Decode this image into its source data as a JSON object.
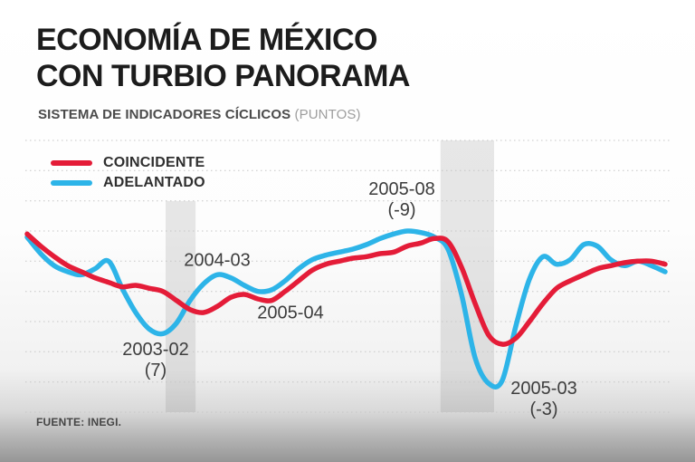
{
  "header": {
    "title_line1": "ECONOMÍA DE MÉXICO",
    "title_line2": "CON TURBIO PANORAMA",
    "subtitle_bold": "SISTEMA DE INDICADORES CÍCLICOS",
    "subtitle_light": "(PUNTOS)"
  },
  "footer": {
    "source": "FUENTE: INEGI."
  },
  "chart_data": {
    "type": "line",
    "title": "ECONOMÍA DE MÉXICO CON TURBIO PANORAMA",
    "subtitle": "SISTEMA DE INDICADORES CÍCLICOS (PUNTOS)",
    "ylabel": "puntos",
    "ylim": [
      -12,
      6
    ],
    "grid": true,
    "gridline_count": 10,
    "legend_position": "top-left",
    "x_unit": "time (monthly samples, ~2002 to 2006)",
    "x": [
      0,
      1,
      2,
      3,
      4,
      5,
      6,
      7,
      8,
      9,
      10,
      11,
      12,
      13,
      14,
      15,
      16,
      17,
      18,
      19,
      20,
      21,
      22,
      23,
      24,
      25,
      26,
      27,
      28,
      29,
      30,
      31,
      32,
      33,
      34,
      35,
      36,
      37,
      38,
      39,
      40,
      41,
      42,
      43,
      44,
      45,
      46,
      47
    ],
    "series": [
      {
        "name": "COINCIDENTE",
        "color": "#e41c38",
        "values": [
          -0.2,
          -1.0,
          -1.7,
          -2.3,
          -2.7,
          -3.1,
          -3.4,
          -3.7,
          -3.6,
          -3.8,
          -4.0,
          -4.6,
          -5.2,
          -5.4,
          -5.0,
          -4.4,
          -4.2,
          -4.5,
          -4.6,
          -4.0,
          -3.3,
          -2.6,
          -2.2,
          -2.0,
          -1.8,
          -1.7,
          -1.5,
          -1.4,
          -1.0,
          -0.8,
          -0.5,
          -0.7,
          -2.4,
          -4.8,
          -6.9,
          -7.5,
          -7.1,
          -6.0,
          -4.8,
          -3.8,
          -3.3,
          -2.9,
          -2.5,
          -2.3,
          -2.1,
          -2.0,
          -2.0,
          -2.2
        ]
      },
      {
        "name": "ADELANTADO",
        "color": "#2db4e8",
        "values": [
          -0.4,
          -1.5,
          -2.3,
          -2.7,
          -2.9,
          -2.5,
          -2.0,
          -3.8,
          -5.4,
          -6.5,
          -6.8,
          -6.1,
          -4.6,
          -3.5,
          -2.9,
          -3.1,
          -3.6,
          -4.0,
          -3.9,
          -3.3,
          -2.5,
          -1.9,
          -1.6,
          -1.4,
          -1.2,
          -0.9,
          -0.5,
          -0.2,
          0.0,
          -0.1,
          -0.4,
          -1.2,
          -4.2,
          -8.4,
          -10.1,
          -9.9,
          -6.3,
          -3.2,
          -1.7,
          -2.2,
          -1.9,
          -0.9,
          -1.0,
          -1.9,
          -2.3,
          -2.0,
          -2.3,
          -2.7
        ]
      }
    ],
    "bands": [
      {
        "x0_frac": 0.217,
        "x1_frac": 0.264,
        "top_frac": 0.223
      },
      {
        "x0_frac": 0.648,
        "x1_frac": 0.732,
        "top_frac": 0.0
      }
    ],
    "annotations": [
      {
        "label": "2003-02",
        "value": "(7)"
      },
      {
        "label": "2004-03",
        "value": ""
      },
      {
        "label": "2005-04",
        "value": ""
      },
      {
        "label": "2005-08",
        "value": "(-9)"
      },
      {
        "label": "2005-03",
        "value": "(-3)"
      }
    ]
  }
}
